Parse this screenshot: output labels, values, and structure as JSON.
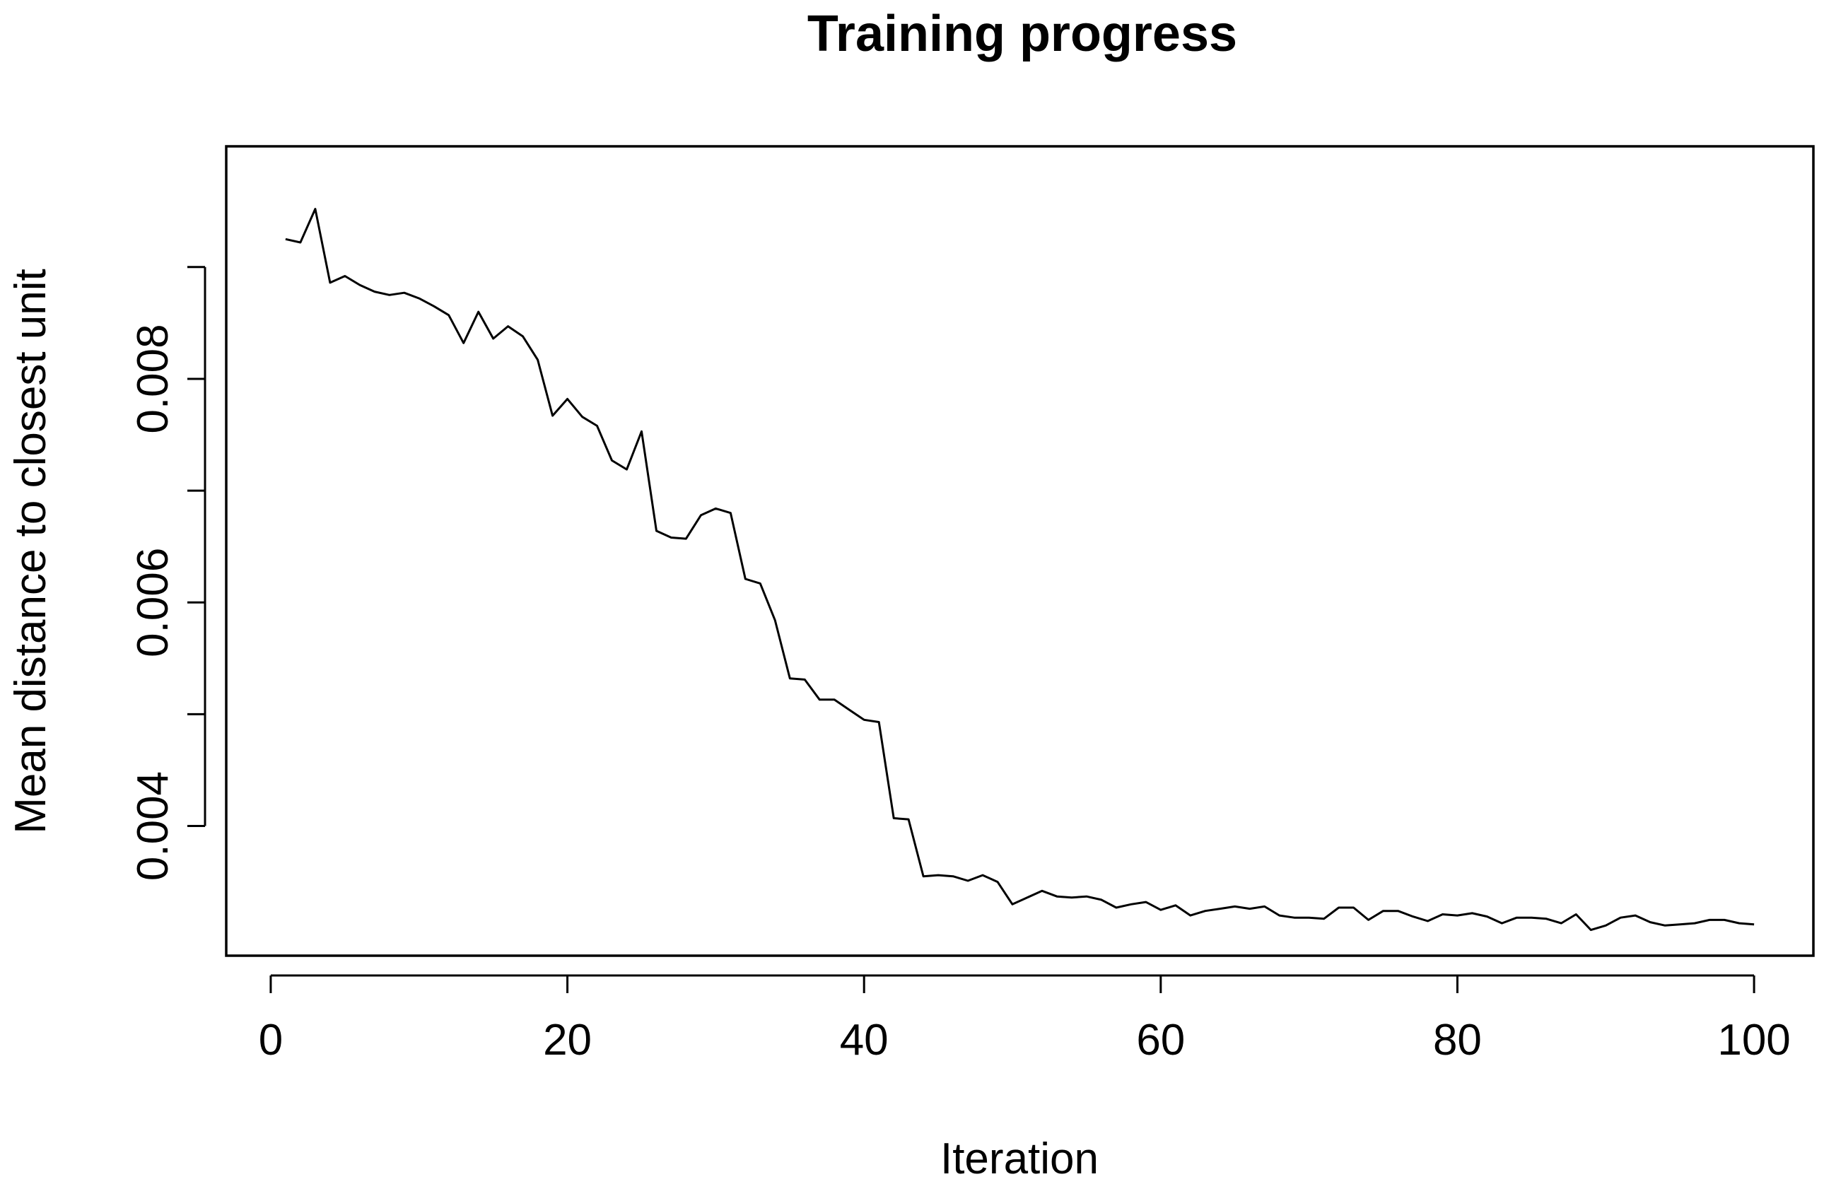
{
  "chart_data": {
    "type": "line",
    "title": "Training progress",
    "xlabel": "Iteration",
    "ylabel": "Mean distance to closest unit",
    "xlim": [
      -3,
      104
    ],
    "ylim": [
      0.00284,
      0.01008
    ],
    "x_ticks": [
      0,
      20,
      40,
      60,
      80,
      100
    ],
    "x_tick_labels": [
      "0",
      "20",
      "40",
      "60",
      "80",
      "100"
    ],
    "y_ticks": [
      0.004,
      0.005,
      0.006,
      0.007,
      0.008,
      0.009
    ],
    "y_tick_labels": [
      "0.004",
      "",
      "0.006",
      "",
      "0.008",
      ""
    ],
    "grid": false,
    "legend": "none",
    "line_color": "#000000",
    "series": [
      {
        "x": [
          1,
          2,
          3,
          4,
          5,
          6,
          7,
          8,
          9,
          10,
          11,
          12,
          13,
          14,
          15,
          16,
          17,
          18,
          19,
          20,
          21,
          22,
          23,
          24,
          25,
          26,
          27,
          28,
          29,
          30,
          31,
          32,
          33,
          34,
          35,
          36,
          37,
          38,
          39,
          40,
          41,
          42,
          43,
          44,
          45,
          46,
          47,
          48,
          49,
          50,
          51,
          52,
          53,
          54,
          55,
          56,
          57,
          58,
          59,
          60,
          61,
          62,
          63,
          64,
          65,
          66,
          67,
          68,
          69,
          70,
          71,
          72,
          73,
          74,
          75,
          76,
          77,
          78,
          79,
          80,
          81,
          82,
          83,
          84,
          85,
          86,
          87,
          88,
          89,
          90,
          91,
          92,
          93,
          94,
          95,
          96,
          97,
          98,
          99,
          100
        ],
        "values": [
          0.00925,
          0.00922,
          0.00952,
          0.00886,
          0.00892,
          0.00884,
          0.00878,
          0.00875,
          0.00877,
          0.00872,
          0.00865,
          0.00857,
          0.00832,
          0.0086,
          0.00836,
          0.00847,
          0.00838,
          0.00817,
          0.00767,
          0.00782,
          0.00766,
          0.00758,
          0.00727,
          0.00719,
          0.00753,
          0.00664,
          0.00658,
          0.00657,
          0.00678,
          0.00684,
          0.0068,
          0.00621,
          0.00617,
          0.00584,
          0.00532,
          0.00531,
          0.00513,
          0.00513,
          0.00504,
          0.00495,
          0.00493,
          0.00407,
          0.00406,
          0.00355,
          0.00356,
          0.00355,
          0.00351,
          0.00356,
          0.0035,
          0.0033,
          0.00336,
          0.00342,
          0.00337,
          0.00336,
          0.00337,
          0.00334,
          0.00327,
          0.0033,
          0.00332,
          0.00325,
          0.00329,
          0.0032,
          0.00324,
          0.00326,
          0.00328,
          0.00326,
          0.00328,
          0.0032,
          0.00318,
          0.00318,
          0.00317,
          0.00327,
          0.00327,
          0.00316,
          0.00324,
          0.00324,
          0.00319,
          0.00315,
          0.00321,
          0.0032,
          0.00322,
          0.00319,
          0.00313,
          0.00318,
          0.00318,
          0.00317,
          0.00313,
          0.00321,
          0.00307,
          0.00311,
          0.00318,
          0.0032,
          0.00314,
          0.00311,
          0.00312,
          0.00313,
          0.00316,
          0.00316,
          0.00313,
          0.00312
        ]
      }
    ]
  }
}
